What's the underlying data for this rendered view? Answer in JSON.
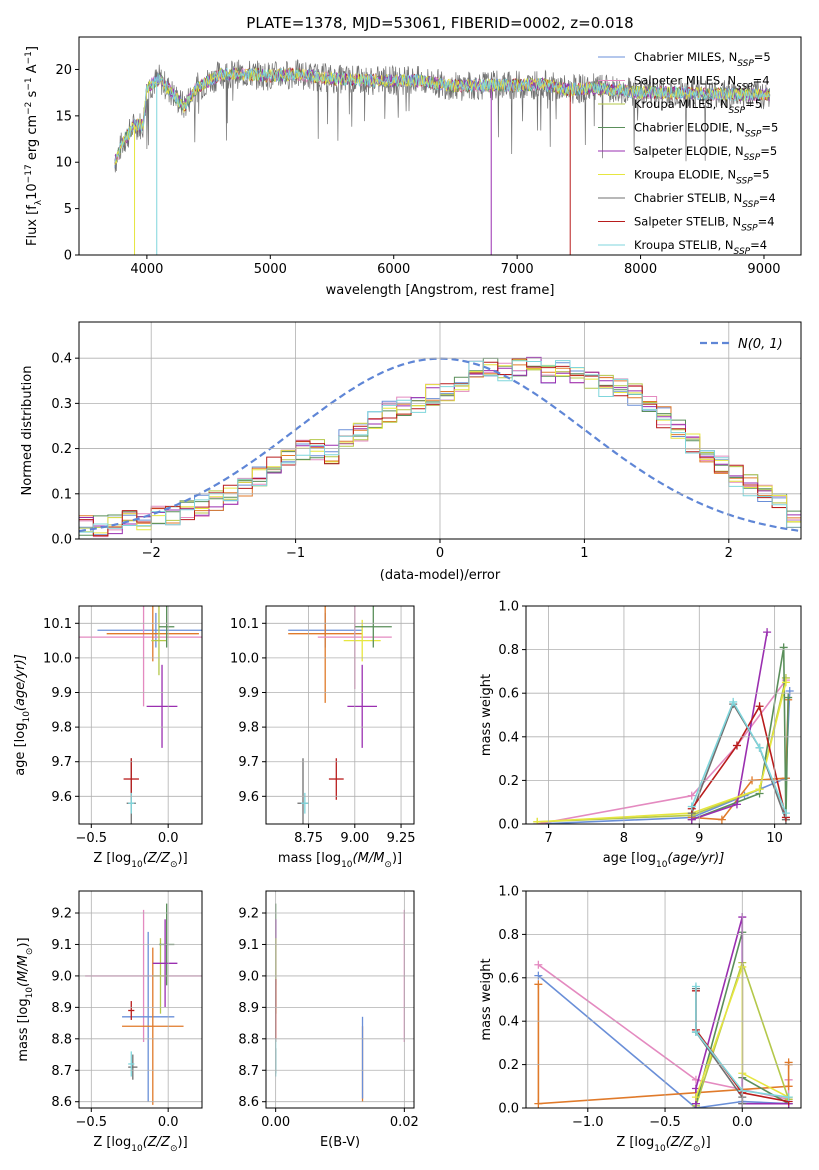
{
  "figure": {
    "title": "PLATE=1378, MJD=53061, FIBERID=0002, z=0.018"
  },
  "colors": {
    "Chabrier MILES": "#6a8fd8",
    "Salpeter MILES": "#e48ac0",
    "Kroupa MILES": "#b4c84a",
    "Chabrier ELODIE": "#5a8f5a",
    "Salpeter ELODIE": "#9a2fb0",
    "Kroupa ELODIE": "#e6e640",
    "Chabrier STELIB": "#707070",
    "Salpeter STELIB": "#b81c1c",
    "Kroupa STELIB": "#7fd6dc",
    "orange": "#e07a2a",
    "normal_curve": "#5f86d6"
  },
  "chart_data": [
    {
      "id": "spectrum",
      "type": "line",
      "xlabel": "wavelength [Angstrom, rest frame]",
      "ylabel": "Flux [f",
      "ylabel_sub": "λ",
      "ylabel_rest": "10",
      "ylabel_exp": "−17",
      "ylabel_tail": " erg cm",
      "ylabel_exp2": "−2",
      "ylabel_tail2": " s",
      "ylabel_exp3": "−1",
      "ylabel_tail3": " A",
      "ylabel_exp4": "−1",
      "ylabel_end": "]",
      "xlim": [
        3450,
        9300
      ],
      "ylim": [
        0,
        23.5
      ],
      "xticks": [
        4000,
        5000,
        6000,
        7000,
        8000,
        9000
      ],
      "yticks": [
        0,
        5,
        10,
        15,
        20
      ],
      "legend": [
        {
          "name": "Chabrier MILES",
          "n": "5"
        },
        {
          "name": "Salpeter MILES",
          "n": "4"
        },
        {
          "name": "Kroupa MILES",
          "n": "5"
        },
        {
          "name": "Chabrier ELODIE",
          "n": "5"
        },
        {
          "name": "Salpeter ELODIE",
          "n": "5"
        },
        {
          "name": "Kroupa ELODIE",
          "n": "5"
        },
        {
          "name": "Chabrier STELIB",
          "n": "4"
        },
        {
          "name": "Salpeter STELIB",
          "n": "4"
        },
        {
          "name": "Kroupa STELIB",
          "n": "4"
        }
      ],
      "legend_location": "top-right",
      "continuum_x": [
        3740,
        3800,
        3900,
        3970,
        4000,
        4100,
        4300,
        4400,
        4600,
        4800,
        5000,
        5200,
        5500,
        5800,
        6000,
        6200,
        6500,
        6800,
        7000,
        7200,
        7400,
        7600,
        7800,
        8000,
        8200,
        8500,
        8800,
        9050
      ],
      "continuum_y": [
        10,
        12,
        14,
        14,
        18,
        19,
        16,
        18,
        19.5,
        19.5,
        19.3,
        19.5,
        19,
        18.8,
        18.8,
        18.8,
        18.2,
        18.3,
        18.3,
        18.4,
        17.8,
        18,
        17.8,
        17.5,
        17.5,
        17.4,
        17.3,
        17.3
      ],
      "dips": [
        {
          "series": "Kroupa ELODIE",
          "x": 3900,
          "y": 0
        },
        {
          "series": "Kroupa STELIB",
          "x": 4080,
          "y": 0
        },
        {
          "series": "Salpeter ELODIE",
          "x": 6790,
          "y": 0
        },
        {
          "series": "Salpeter STELIB",
          "x": 7430,
          "y": 0
        }
      ]
    },
    {
      "id": "residual-histogram",
      "type": "histogram",
      "xlabel": "(data-model)/error",
      "ylabel": "Normed distribution",
      "xlim": [
        -2.5,
        2.5
      ],
      "ylim": [
        0,
        0.48
      ],
      "xticks": [
        -2,
        -1,
        0,
        1,
        2
      ],
      "yticks": [
        0.0,
        0.1,
        0.2,
        0.3,
        0.4
      ],
      "bin_width": 0.1,
      "bin_start": -2.5,
      "envelope": [
        0.03,
        0.03,
        0.035,
        0.04,
        0.045,
        0.05,
        0.055,
        0.06,
        0.075,
        0.085,
        0.1,
        0.12,
        0.14,
        0.16,
        0.185,
        0.2,
        0.2,
        0.19,
        0.22,
        0.24,
        0.26,
        0.28,
        0.29,
        0.3,
        0.32,
        0.33,
        0.35,
        0.37,
        0.38,
        0.37,
        0.38,
        0.38,
        0.37,
        0.37,
        0.36,
        0.35,
        0.34,
        0.33,
        0.32,
        0.3,
        0.27,
        0.24,
        0.21,
        0.19,
        0.16,
        0.14,
        0.12,
        0.1,
        0.08,
        0.05
      ],
      "normal_label": "N(0, 1)",
      "legend_location": "top-right"
    },
    {
      "id": "age-vs-metallicity",
      "type": "errorbar",
      "xlabel": "Z [log",
      "xlabel_sub": "10",
      "xlabel_rest": "(Z/Z",
      "xlabel_sun": "⊙",
      "xlabel_end": ")]",
      "ylabel": "age  [log",
      "ylabel_sub": "10",
      "ylabel_rest": "(age/yr)]",
      "xlim": [
        -0.58,
        0.22
      ],
      "ylim": [
        9.52,
        10.15
      ],
      "xticks": [
        -0.5,
        0.0
      ],
      "yticks": [
        9.6,
        9.7,
        9.8,
        9.9,
        10.0,
        10.1
      ],
      "points": [
        {
          "series": "Chabrier MILES",
          "x": -0.08,
          "y": 10.08,
          "xerr": 0.38,
          "yerr": 0.05
        },
        {
          "series": "Salpeter MILES",
          "x": -0.16,
          "y": 10.06,
          "xerr": 0.42,
          "yerr": 0.2
        },
        {
          "series": "orange",
          "x": -0.1,
          "y": 10.07,
          "xerr": 0.3,
          "yerr": 0.08
        },
        {
          "series": "Kroupa MILES",
          "x": -0.06,
          "y": 10.05,
          "xerr": 0.05,
          "yerr": 0.1
        },
        {
          "series": "Chabrier ELODIE",
          "x": -0.01,
          "y": 10.09,
          "xerr": 0.05,
          "yerr": 0.06
        },
        {
          "series": "Salpeter ELODIE",
          "x": -0.04,
          "y": 9.86,
          "xerr": 0.1,
          "yerr": 0.12
        },
        {
          "series": "Chabrier STELIB",
          "x": -0.24,
          "y": 9.58,
          "xerr": 0.03,
          "yerr": 0.13
        },
        {
          "series": "Salpeter STELIB",
          "x": -0.24,
          "y": 9.65,
          "xerr": 0.05,
          "yerr": 0.06
        },
        {
          "series": "Kroupa STELIB",
          "x": -0.24,
          "y": 9.58,
          "xerr": 0.02,
          "yerr": 0.03
        }
      ]
    },
    {
      "id": "age-vs-mass",
      "type": "errorbar",
      "xlabel": "mass [log",
      "xlabel_sub": "10",
      "xlabel_rest": "(M/M",
      "xlabel_sun": "⊙",
      "xlabel_end": ")]",
      "xlim": [
        8.52,
        9.32
      ],
      "ylim": [
        9.52,
        10.15
      ],
      "xticks": [
        8.75,
        9.0,
        9.25
      ],
      "yticks": [
        9.6,
        9.7,
        9.8,
        9.9,
        10.0,
        10.1
      ],
      "points": [
        {
          "series": "Chabrier MILES",
          "x": 8.84,
          "y": 10.08,
          "xerr": 0.2,
          "yerr": 0.05
        },
        {
          "series": "orange",
          "x": 8.84,
          "y": 10.07,
          "xerr": 0.2,
          "yerr": 0.2
        },
        {
          "series": "Salpeter MILES",
          "x": 9.0,
          "y": 10.06,
          "xerr": 0.2,
          "yerr": 0.15
        },
        {
          "series": "Kroupa ELODIE",
          "x": 9.04,
          "y": 10.05,
          "xerr": 0.1,
          "yerr": 0.06
        },
        {
          "series": "Chabrier ELODIE",
          "x": 9.1,
          "y": 10.09,
          "xerr": 0.1,
          "yerr": 0.06
        },
        {
          "series": "Salpeter ELODIE",
          "x": 9.04,
          "y": 9.86,
          "xerr": 0.08,
          "yerr": 0.12
        },
        {
          "series": "Salpeter STELIB",
          "x": 8.9,
          "y": 9.65,
          "xerr": 0.04,
          "yerr": 0.06
        },
        {
          "series": "Chabrier STELIB",
          "x": 8.72,
          "y": 9.58,
          "xerr": 0.03,
          "yerr": 0.13
        },
        {
          "series": "Kroupa STELIB",
          "x": 8.73,
          "y": 9.58,
          "xerr": 0.02,
          "yerr": 0.03
        }
      ]
    },
    {
      "id": "weight-vs-age",
      "type": "line",
      "xlabel": "age  [log",
      "xlabel_sub": "10",
      "xlabel_rest": "(age/yr)]",
      "ylabel": "mass weight",
      "xlim": [
        6.7,
        10.35
      ],
      "ylim": [
        0,
        1.0
      ],
      "xticks": [
        7,
        8,
        9,
        10
      ],
      "yticks": [
        0.0,
        0.2,
        0.4,
        0.6,
        0.8,
        1.0
      ],
      "series": [
        {
          "name": "Chabrier MILES",
          "x": [
            6.85,
            8.9,
            9.6,
            10.15,
            10.2
          ],
          "y": [
            0.0,
            0.03,
            0.13,
            0.21,
            0.61
          ]
        },
        {
          "name": "Salpeter MILES",
          "x": [
            6.85,
            8.9,
            9.5,
            10.15
          ],
          "y": [
            0.0,
            0.13,
            0.36,
            0.66
          ]
        },
        {
          "name": "orange",
          "x": [
            8.9,
            9.3,
            9.7,
            10.15,
            10.18
          ],
          "y": [
            0.03,
            0.02,
            0.2,
            0.21,
            0.57
          ]
        },
        {
          "name": "Kroupa MILES",
          "x": [
            6.85,
            8.9,
            9.8,
            10.15
          ],
          "y": [
            0.01,
            0.04,
            0.16,
            0.67
          ]
        },
        {
          "name": "Chabrier ELODIE",
          "x": [
            8.9,
            9.8,
            10.12,
            10.15,
            10.18
          ],
          "y": [
            0.02,
            0.14,
            0.81,
            0.02,
            0.58
          ]
        },
        {
          "name": "Salpeter ELODIE",
          "x": [
            8.9,
            9.5,
            9.9
          ],
          "y": [
            0.02,
            0.09,
            0.88
          ]
        },
        {
          "name": "Kroupa ELODIE",
          "x": [
            6.85,
            8.9,
            9.8,
            10.15
          ],
          "y": [
            0.01,
            0.05,
            0.16,
            0.65
          ]
        },
        {
          "name": "Chabrier STELIB",
          "x": [
            8.9,
            9.45,
            9.8,
            10.15
          ],
          "y": [
            0.05,
            0.55,
            0.35,
            0.02
          ]
        },
        {
          "name": "Salpeter STELIB",
          "x": [
            8.9,
            9.5,
            9.8,
            10.15
          ],
          "y": [
            0.07,
            0.36,
            0.54,
            0.03
          ]
        },
        {
          "name": "Kroupa STELIB",
          "x": [
            8.9,
            9.45,
            9.8,
            10.15
          ],
          "y": [
            0.08,
            0.56,
            0.35,
            0.05
          ]
        }
      ]
    },
    {
      "id": "mass-vs-metallicity",
      "type": "errorbar",
      "xlabel": "Z [log",
      "xlabel_sub": "10",
      "xlabel_rest": "(Z/Z",
      "xlabel_sun": "⊙",
      "xlabel_end": ")]",
      "ylabel": "mass [log",
      "ylabel_sub": "10",
      "ylabel_rest": "(M/M",
      "ylabel_sun": "⊙",
      "ylabel_end": ")]",
      "xlim": [
        -0.58,
        0.22
      ],
      "ylim": [
        8.58,
        9.27
      ],
      "xticks": [
        -0.5,
        0.0
      ],
      "yticks": [
        8.6,
        8.7,
        8.8,
        8.9,
        9.0,
        9.1,
        9.2
      ],
      "points": [
        {
          "series": "Salpeter MILES",
          "x": -0.16,
          "y": 9.0,
          "xerr": 0.38,
          "yerr": 0.21
        },
        {
          "series": "Chabrier MILES",
          "x": -0.13,
          "y": 8.87,
          "xerr": 0.17,
          "yerr": 0.27
        },
        {
          "series": "orange",
          "x": -0.1,
          "y": 8.84,
          "xerr": 0.2,
          "yerr": 0.25
        },
        {
          "series": "Kroupa MILES",
          "x": -0.05,
          "y": 9.0,
          "xerr": 0.05,
          "yerr": 0.12
        },
        {
          "series": "Chabrier ELODIE",
          "x": -0.01,
          "y": 9.1,
          "xerr": 0.05,
          "yerr": 0.13
        },
        {
          "series": "Salpeter ELODIE",
          "x": -0.02,
          "y": 9.04,
          "xerr": 0.08,
          "yerr": 0.14
        },
        {
          "series": "Salpeter STELIB",
          "x": -0.24,
          "y": 8.89,
          "xerr": 0.02,
          "yerr": 0.03
        },
        {
          "series": "Chabrier STELIB",
          "x": -0.23,
          "y": 8.71,
          "xerr": 0.03,
          "yerr": 0.04
        },
        {
          "series": "Kroupa STELIB",
          "x": -0.24,
          "y": 8.72,
          "xerr": 0.02,
          "yerr": 0.04
        }
      ]
    },
    {
      "id": "mass-vs-extinction",
      "type": "errorbar",
      "xlabel": "E(B-V)",
      "xlim": [
        -0.0015,
        0.0215
      ],
      "ylim": [
        8.58,
        9.27
      ],
      "xticks": [
        0.0,
        0.02
      ],
      "yticks": [
        8.6,
        8.7,
        8.8,
        8.9,
        9.0,
        9.1,
        9.2
      ],
      "points": [
        {
          "series": "Salpeter MILES",
          "x": 0.02,
          "y": 9.0,
          "xerr": 0,
          "yerr": 0.21
        },
        {
          "series": "orange",
          "x": 0.0135,
          "y": 8.72,
          "xerr": 0,
          "yerr": 0.12
        },
        {
          "series": "Chabrier MILES",
          "x": 0.0135,
          "y": 8.74,
          "xerr": 0,
          "yerr": 0.13
        },
        {
          "series": "Chabrier ELODIE",
          "x": 0.0,
          "y": 9.1,
          "xerr": 0,
          "yerr": 0.13
        },
        {
          "series": "Salpeter ELODIE",
          "x": 0.0,
          "y": 9.04,
          "xerr": 0,
          "yerr": 0.14
        },
        {
          "series": "Kroupa MILES",
          "x": 0.0,
          "y": 9.0,
          "xerr": 0,
          "yerr": 0.12
        },
        {
          "series": "Salpeter STELIB",
          "x": 0.0,
          "y": 8.89,
          "xerr": 0,
          "yerr": 0.1
        },
        {
          "series": "Chabrier STELIB",
          "x": 0.0,
          "y": 8.73,
          "xerr": 0,
          "yerr": 0.04
        },
        {
          "series": "Kroupa STELIB",
          "x": 0.0,
          "y": 8.74,
          "xerr": 0,
          "yerr": 0.06
        }
      ]
    },
    {
      "id": "weight-vs-metallicity",
      "type": "line",
      "xlabel": "Z [log",
      "xlabel_sub": "10",
      "xlabel_rest": "(Z/Z",
      "xlabel_sun": "⊙",
      "xlabel_end": ")]",
      "ylabel": "mass weight",
      "xlim": [
        -1.4,
        0.38
      ],
      "ylim": [
        0,
        1.0
      ],
      "xticks": [
        -1.0,
        -0.5,
        0.0
      ],
      "yticks": [
        0.0,
        0.2,
        0.4,
        0.6,
        0.8,
        1.0
      ],
      "series": [
        {
          "name": "Chabrier MILES",
          "x": [
            -1.32,
            -0.3,
            0.0,
            0.3,
            0.3
          ],
          "y": [
            0.61,
            0.0,
            0.03,
            0.02,
            0.05
          ]
        },
        {
          "name": "Salpeter MILES",
          "x": [
            -1.32,
            -0.3,
            0.3,
            0.3
          ],
          "y": [
            0.66,
            0.13,
            0.04,
            0.13
          ]
        },
        {
          "name": "orange",
          "x": [
            -1.32,
            -1.32,
            0.3,
            0.3,
            0.3
          ],
          "y": [
            0.57,
            0.02,
            0.1,
            0.2,
            0.21
          ]
        },
        {
          "name": "Kroupa MILES",
          "x": [
            -0.3,
            0.0,
            0.3
          ],
          "y": [
            0.01,
            0.67,
            0.04
          ]
        },
        {
          "name": "Chabrier ELODIE",
          "x": [
            -0.3,
            0.0,
            0.0,
            0.3
          ],
          "y": [
            0.02,
            0.81,
            0.14,
            0.02
          ]
        },
        {
          "name": "Salpeter ELODIE",
          "x": [
            -0.3,
            -0.3,
            0.0,
            0.0,
            0.3
          ],
          "y": [
            0.02,
            0.09,
            0.88,
            0.02,
            0.02
          ]
        },
        {
          "name": "Kroupa ELODIE",
          "x": [
            -0.3,
            0.0,
            0.0,
            0.3
          ],
          "y": [
            0.05,
            0.65,
            0.16,
            0.05
          ]
        },
        {
          "name": "Chabrier STELIB",
          "x": [
            -0.3,
            -0.3,
            0.0,
            0.0
          ],
          "y": [
            0.55,
            0.35,
            0.05,
            0.02
          ]
        },
        {
          "name": "Salpeter STELIB",
          "x": [
            -0.3,
            -0.3,
            0.0,
            0.3
          ],
          "y": [
            0.54,
            0.36,
            0.07,
            0.03
          ]
        },
        {
          "name": "Kroupa STELIB",
          "x": [
            -0.3,
            -0.3,
            0.0,
            0.3
          ],
          "y": [
            0.56,
            0.35,
            0.08,
            0.05
          ]
        }
      ]
    }
  ]
}
